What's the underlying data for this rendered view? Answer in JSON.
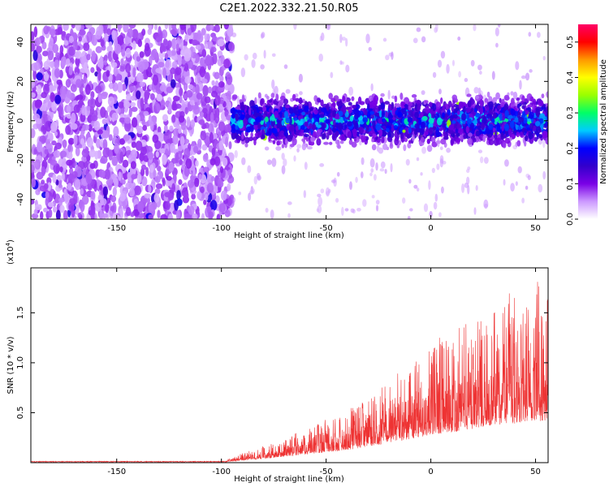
{
  "figure": {
    "title": "C2E1.2022.332.21.50.R05"
  },
  "chart_data": [
    {
      "type": "heatmap",
      "xlabel": "Height of straight line (km)",
      "ylabel": "Frequency (Hz)",
      "xlim": [
        -191,
        56
      ],
      "ylim": [
        -50,
        49
      ],
      "xticks": [
        -150,
        -100,
        -50,
        0,
        50
      ],
      "yticks": [
        -40,
        -20,
        0,
        20,
        40
      ],
      "colorbar": {
        "label": "Normalized spectral amplitude",
        "range": [
          0,
          0.55
        ],
        "ticks": [
          0.0,
          0.1,
          0.2,
          0.3,
          0.4,
          0.5
        ],
        "colormap": [
          "#ffffff",
          "#cc99ff",
          "#7a00e6",
          "#3300cc",
          "#0000ff",
          "#00ccff",
          "#00ff66",
          "#99ff00",
          "#ffff00",
          "#ff9900",
          "#ff0000",
          "#ff0066"
        ]
      },
      "regions": [
        {
          "x_range": [
            -191,
            -95
          ],
          "freq_range": [
            -50,
            49
          ],
          "amplitude": 0.06,
          "note_level": "broadband"
        },
        {
          "x_range": [
            -95,
            56
          ],
          "freq_range": [
            -12,
            12
          ],
          "amplitude_peak": 0.25,
          "note_level": "band near 0 Hz"
        }
      ],
      "grid": false
    },
    {
      "type": "line",
      "xlabel": "Height of straight line (km)",
      "ylabel": "SNR (10 * v/v)",
      "y_scale_note": "(x10",
      "y_scale_exp": "4",
      "y_scale_close": ")",
      "xlim": [
        -191,
        56
      ],
      "ylim": [
        0,
        1.95
      ],
      "xticks": [
        -150,
        -100,
        -50,
        0,
        50
      ],
      "yticks": [
        0.5,
        1.0,
        1.5
      ],
      "series": [
        {
          "color": "#ee3333",
          "envelope": [
            {
              "x": -191,
              "y": 0.01
            },
            {
              "x": -100,
              "y": 0.01
            },
            {
              "x": -95,
              "y": 0.05
            },
            {
              "x": -80,
              "y": 0.16
            },
            {
              "x": -60,
              "y": 0.32
            },
            {
              "x": -40,
              "y": 0.5
            },
            {
              "x": -20,
              "y": 0.78
            },
            {
              "x": 0,
              "y": 1.08
            },
            {
              "x": 20,
              "y": 1.35
            },
            {
              "x": 30,
              "y": 1.5
            },
            {
              "x": 45,
              "y": 1.6
            },
            {
              "x": 56,
              "y": 1.7
            }
          ]
        }
      ],
      "grid": false
    }
  ]
}
